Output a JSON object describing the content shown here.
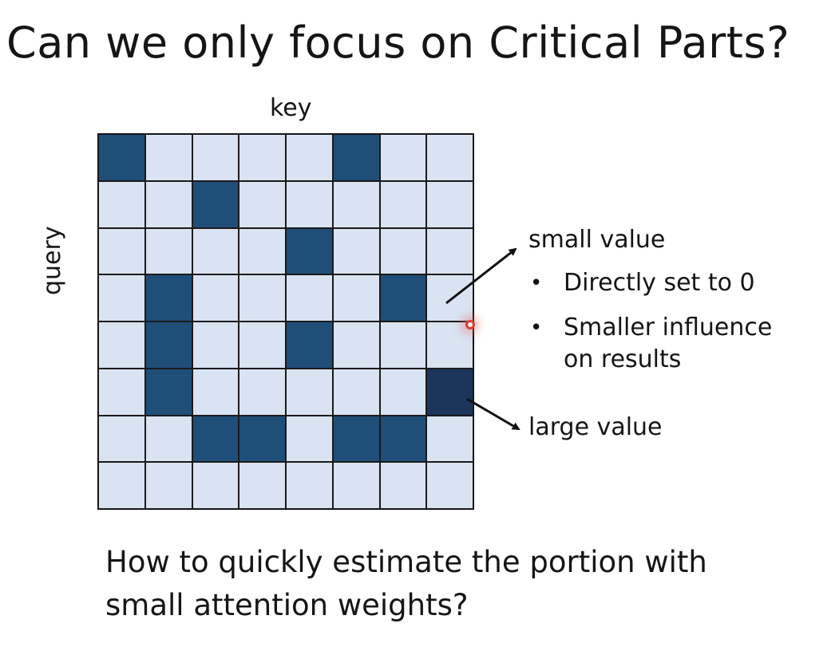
{
  "slide": {
    "title": "Can we only focus on Critical Parts?",
    "question": "How to quickly estimate the portion with small attention weights?"
  },
  "matrix": {
    "key_label": "key",
    "query_label": "query",
    "rows": 8,
    "cols": 8,
    "cells": [
      [
        1,
        0,
        0,
        0,
        0,
        1,
        0,
        0
      ],
      [
        0,
        0,
        1,
        0,
        0,
        0,
        0,
        0
      ],
      [
        0,
        0,
        0,
        0,
        1,
        0,
        0,
        0
      ],
      [
        0,
        1,
        0,
        0,
        0,
        0,
        1,
        0
      ],
      [
        0,
        1,
        0,
        0,
        1,
        0,
        0,
        0
      ],
      [
        0,
        1,
        0,
        0,
        0,
        0,
        0,
        2
      ],
      [
        0,
        0,
        1,
        1,
        0,
        1,
        1,
        0
      ],
      [
        0,
        0,
        0,
        0,
        0,
        0,
        0,
        0
      ]
    ],
    "colors": {
      "low": "#d9e3f1",
      "high": "#1f4e79",
      "max": "#1b355b"
    }
  },
  "annotations": {
    "small_value": "small value",
    "bullets": [
      "Directly set to 0",
      "Smaller influence on results"
    ],
    "bullet_glyph": "•",
    "large_value": "large value"
  }
}
